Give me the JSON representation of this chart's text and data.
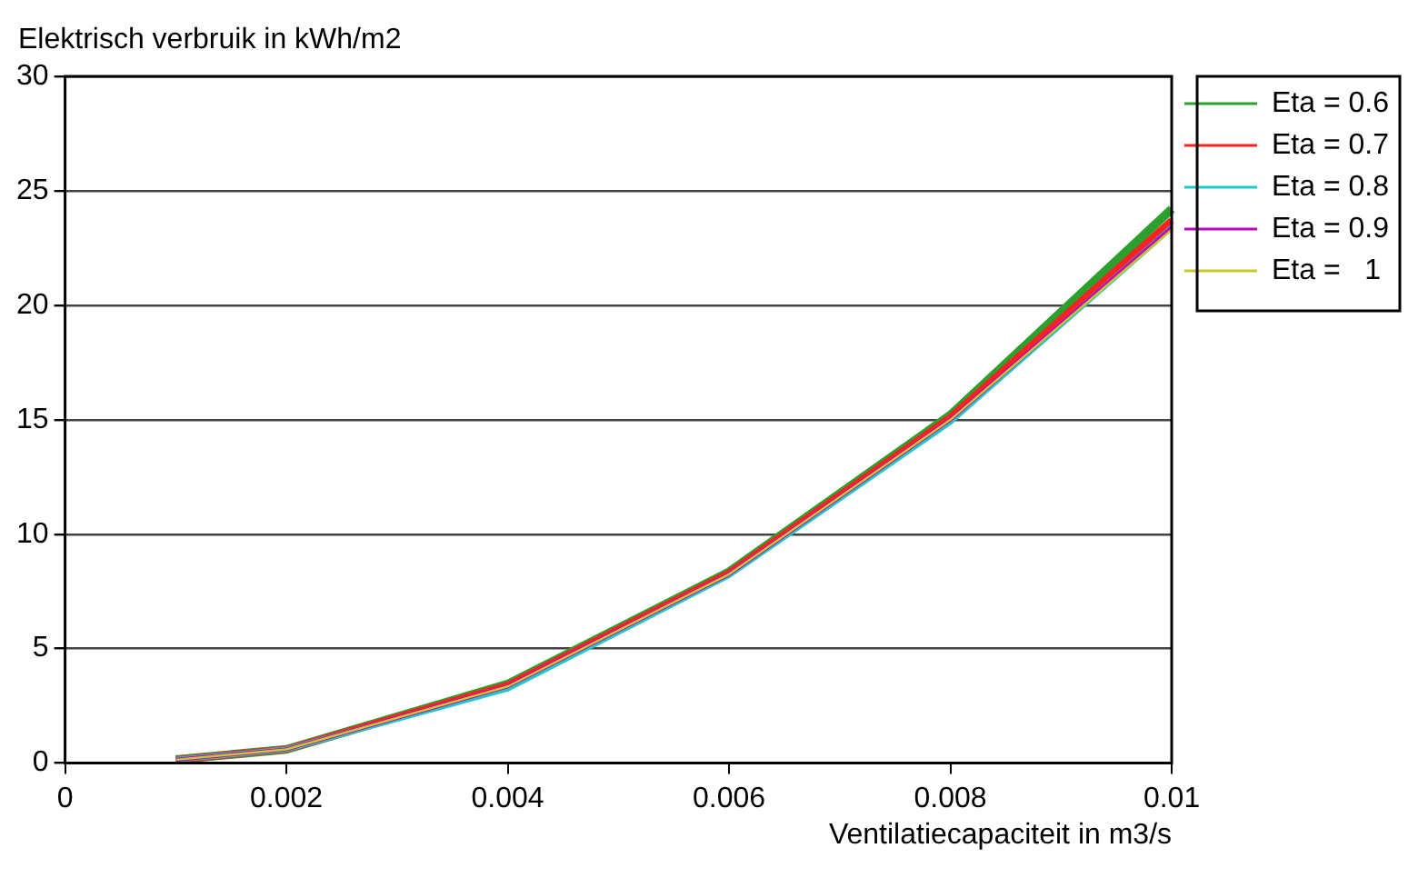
{
  "chart_data": {
    "type": "line",
    "ylabel": "Elektrisch verbruik in kWh/m2",
    "xlabel": "Ventilatiecapaciteit in m3/s",
    "x": [
      0.001,
      0.002,
      0.004,
      0.006,
      0.008,
      0.01
    ],
    "xlim": [
      0,
      0.01
    ],
    "xticks": [
      0,
      0.002,
      0.004,
      0.006,
      0.008,
      0.01
    ],
    "ylim": [
      0,
      30
    ],
    "yticks": [
      0,
      5,
      10,
      15,
      20,
      25,
      30
    ],
    "grid": "y",
    "legend": "right",
    "marker": "none",
    "line_style": "solid",
    "series": [
      {
        "name": "Eta = 0.6",
        "color": "#2ca02c",
        "values": [
          0.15,
          0.6,
          3.45,
          8.35,
          15.2,
          24.2
        ]
      },
      {
        "name": "Eta = 0.7",
        "color": "#ff2020",
        "values": [
          0.15,
          0.6,
          3.4,
          8.3,
          15.1,
          23.7
        ]
      },
      {
        "name": "Eta = 0.8",
        "color": "#20c8c8",
        "values": [
          0.15,
          0.6,
          3.25,
          8.2,
          14.9,
          23.4
        ]
      },
      {
        "name": "Eta = 0.9",
        "color": "#c000c0",
        "values": [
          0.15,
          0.6,
          3.35,
          8.25,
          15.0,
          23.4
        ]
      },
      {
        "name": "Eta =   1",
        "color": "#c8c828",
        "values": [
          0.15,
          0.6,
          3.35,
          8.25,
          15.0,
          23.3
        ]
      }
    ]
  }
}
